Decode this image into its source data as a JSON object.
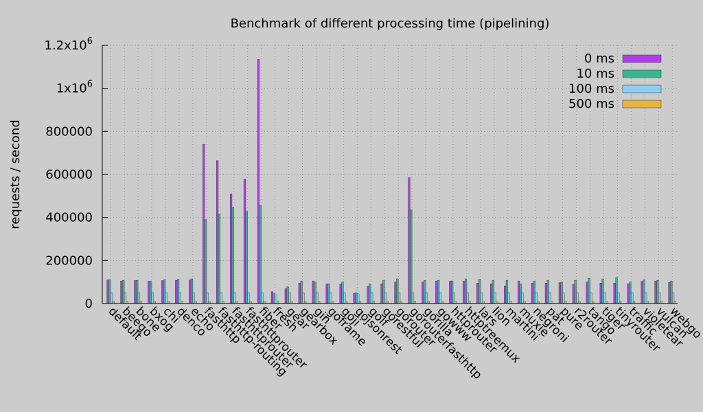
{
  "chart_data": {
    "type": "bar",
    "title": "Benchmark of different processing time (pipelining)",
    "xlabel": "",
    "ylabel": "requests / second",
    "ylim": [
      0,
      1200000
    ],
    "yticks": [
      {
        "value": 0,
        "label": "0"
      },
      {
        "value": 200000,
        "label": "200000"
      },
      {
        "value": 400000,
        "label": "400000"
      },
      {
        "value": 600000,
        "label": "600000"
      },
      {
        "value": 800000,
        "label": "800000"
      },
      {
        "value": 1000000,
        "label": "1x10",
        "sup": "6"
      },
      {
        "value": 1200000,
        "label": "1.2x10",
        "sup": "6"
      }
    ],
    "grid": true,
    "legend_position": "top-right",
    "categories": [
      "default",
      "beego",
      "bone",
      "bxog",
      "chi",
      "denco",
      "echo",
      "fasthttp",
      "fasthttp-routing",
      "fasthttprouter",
      "fasthttprouter",
      "fiber",
      "fresh",
      "gear",
      "gearbox",
      "gin",
      "goframe",
      "goji",
      "gojsonrest",
      "golf",
      "gorestful",
      "gorouter",
      "gorouterfasthttp",
      "gorilla",
      "gowww",
      "httprouter",
      "httptreemux",
      "lars",
      "lion",
      "martini",
      "muxie",
      "negroni",
      "pat",
      "pure",
      "r2router",
      "tango",
      "tiger",
      "tinyrouter",
      "traffic",
      "violetear",
      "vulcan",
      "webgo"
    ],
    "series": [
      {
        "name": "0 ms",
        "color": "#b03ee8",
        "values": [
          110000,
          105000,
          107000,
          105000,
          107000,
          108000,
          110000,
          740000,
          665000,
          510000,
          578000,
          1135000,
          55000,
          70000,
          95000,
          105000,
          90000,
          90000,
          48000,
          80000,
          92000,
          100000,
          585000,
          100000,
          105000,
          105000,
          105000,
          95000,
          92000,
          82000,
          105000,
          95000,
          95000,
          97000,
          90000,
          100000,
          95000,
          95000,
          92000,
          103000,
          105000,
          98000
        ]
      },
      {
        "name": "10 ms",
        "color": "#3cb58f",
        "values": [
          110000,
          108000,
          108000,
          103000,
          110000,
          113000,
          115000,
          390000,
          415000,
          448000,
          428000,
          455000,
          48000,
          78000,
          105000,
          100000,
          92000,
          100000,
          50000,
          92000,
          108000,
          115000,
          435000,
          107000,
          108000,
          105000,
          115000,
          113000,
          108000,
          108000,
          90000,
          105000,
          108000,
          100000,
          108000,
          118000,
          115000,
          120000,
          100000,
          110000,
          108000,
          105000
        ]
      },
      {
        "name": "100 ms",
        "color": "#8bcff2",
        "values": [
          50000,
          50000,
          50000,
          50000,
          50000,
          50000,
          50000,
          50000,
          50000,
          50000,
          50000,
          50000,
          40000,
          50000,
          50000,
          50000,
          50000,
          50000,
          45000,
          50000,
          50000,
          50000,
          50000,
          50000,
          50000,
          50000,
          50000,
          50000,
          50000,
          50000,
          50000,
          50000,
          50000,
          50000,
          50000,
          50000,
          50000,
          50000,
          50000,
          50000,
          50000,
          50000
        ]
      },
      {
        "name": "500 ms",
        "color": "#e8b440",
        "values": [
          10000,
          10000,
          10000,
          10000,
          10000,
          10000,
          10000,
          10000,
          10000,
          10000,
          10000,
          10000,
          10000,
          10000,
          10000,
          10000,
          10000,
          10000,
          10000,
          10000,
          10000,
          10000,
          10000,
          10000,
          10000,
          10000,
          10000,
          10000,
          10000,
          10000,
          10000,
          10000,
          10000,
          10000,
          10000,
          10000,
          10000,
          10000,
          10000,
          10000,
          10000,
          10000
        ]
      }
    ]
  }
}
